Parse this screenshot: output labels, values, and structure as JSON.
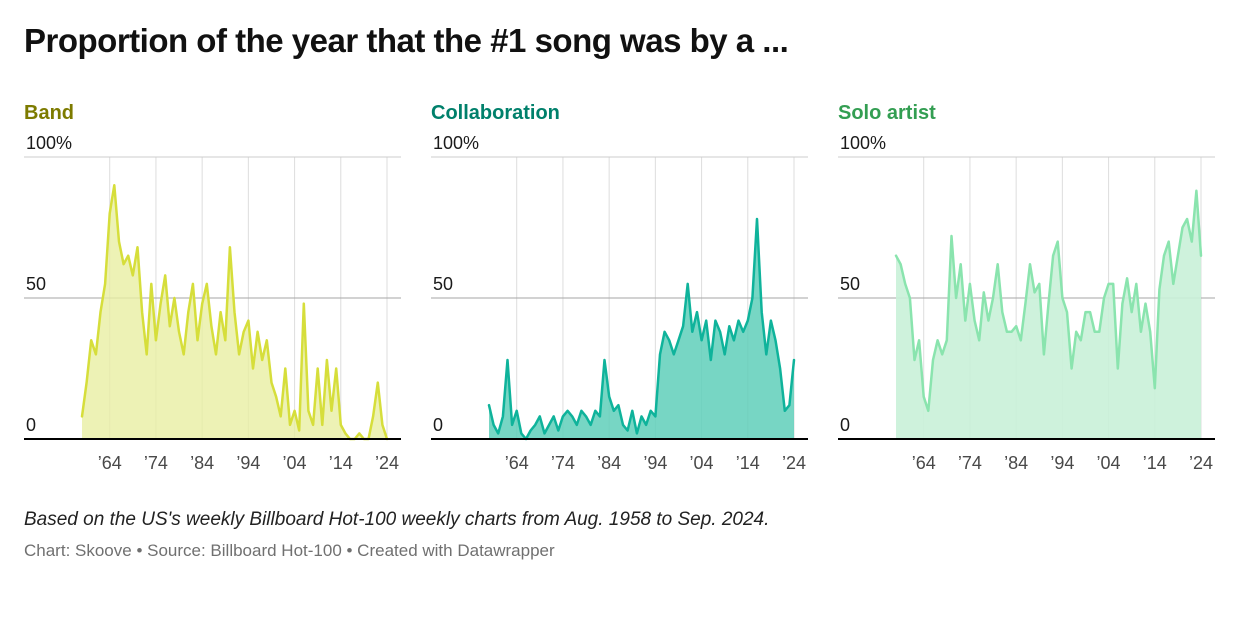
{
  "title": "Proportion of the year that the #1 song was by a ...",
  "footer": {
    "note": "Based on the US's weekly Billboard Hot-100 weekly charts from Aug. 1958 to Sep. 2024.",
    "credits": "Chart: Skoove • Source: Billboard Hot-100 • Created with Datawrapper"
  },
  "chart_data": {
    "type": "area",
    "title": "Proportion of the year that the #1 song was by a ...",
    "x_start_year": 1958,
    "x_end_year": 2024,
    "ylim": [
      0,
      100
    ],
    "grid": true,
    "y_ticks": [
      {
        "value": 100,
        "label": "100%"
      },
      {
        "value": 50,
        "label": "50"
      },
      {
        "value": 0,
        "label": "0"
      }
    ],
    "x_ticks": [
      {
        "year": 1964,
        "label": "’64"
      },
      {
        "year": 1974,
        "label": "’74"
      },
      {
        "year": 1984,
        "label": "’84"
      },
      {
        "year": 1994,
        "label": "’94"
      },
      {
        "year": 2004,
        "label": "’04"
      },
      {
        "year": 2014,
        "label": "’14"
      },
      {
        "year": 2024,
        "label": "’24"
      }
    ],
    "series": [
      {
        "name": "Band",
        "title_color": "#7d7b00",
        "line_color": "#d6de3b",
        "fill_color": "#e9efa2",
        "fill_opacity": 0.8,
        "values": [
          8,
          20,
          35,
          30,
          45,
          55,
          80,
          90,
          70,
          62,
          65,
          58,
          68,
          45,
          30,
          55,
          35,
          48,
          58,
          40,
          50,
          38,
          30,
          45,
          55,
          35,
          48,
          55,
          40,
          30,
          45,
          35,
          68,
          45,
          30,
          38,
          42,
          25,
          38,
          28,
          35,
          20,
          15,
          8,
          25,
          5,
          10,
          3,
          48,
          10,
          5,
          25,
          5,
          28,
          10,
          25,
          5,
          2,
          0,
          0,
          2,
          0,
          0,
          8,
          20,
          5,
          0
        ]
      },
      {
        "name": "Collaboration",
        "title_color": "#00806b",
        "line_color": "#0fb39b",
        "fill_color": "#5fcfba",
        "fill_opacity": 0.85,
        "values": [
          12,
          5,
          2,
          8,
          28,
          5,
          10,
          2,
          0,
          3,
          5,
          8,
          2,
          5,
          8,
          3,
          8,
          10,
          8,
          5,
          10,
          8,
          5,
          10,
          8,
          28,
          15,
          10,
          12,
          5,
          3,
          10,
          2,
          8,
          5,
          10,
          8,
          30,
          38,
          35,
          30,
          35,
          40,
          55,
          38,
          45,
          35,
          42,
          28,
          42,
          38,
          30,
          40,
          35,
          42,
          38,
          42,
          50,
          78,
          45,
          30,
          42,
          35,
          25,
          10,
          12,
          28
        ]
      },
      {
        "name": "Solo artist",
        "title_color": "#339e52",
        "line_color": "#8ae4ae",
        "fill_color": "#c9f1d8",
        "fill_opacity": 0.9,
        "values": [
          65,
          62,
          55,
          50,
          28,
          35,
          15,
          10,
          28,
          35,
          30,
          35,
          72,
          50,
          62,
          42,
          55,
          42,
          35,
          52,
          42,
          50,
          62,
          45,
          38,
          38,
          40,
          35,
          48,
          62,
          52,
          55,
          30,
          48,
          65,
          70,
          50,
          45,
          25,
          38,
          35,
          45,
          45,
          38,
          38,
          50,
          55,
          55,
          25,
          48,
          57,
          45,
          55,
          38,
          48,
          38,
          18,
          53,
          65,
          70,
          55,
          65,
          75,
          78,
          70,
          88,
          65
        ]
      }
    ]
  }
}
